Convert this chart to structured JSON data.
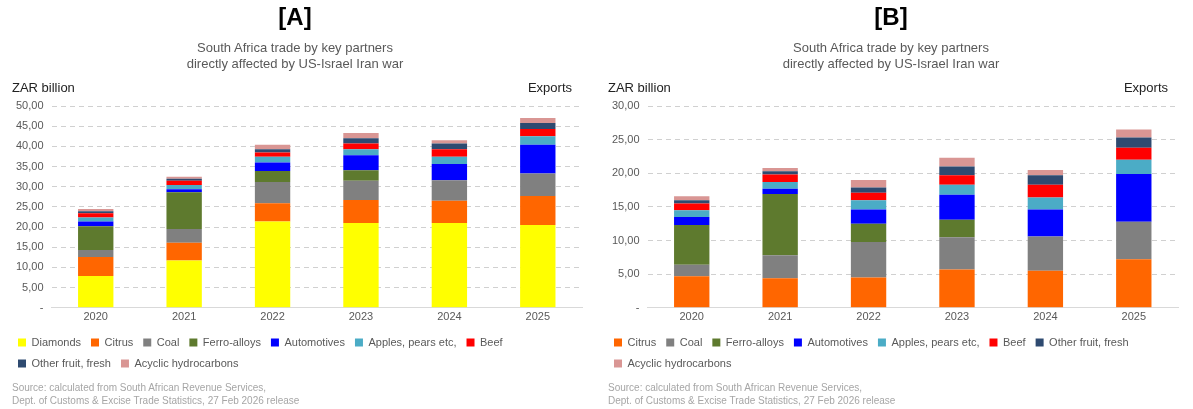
{
  "chart_data": [
    {
      "type": "bar",
      "stacked": true,
      "title": "[A]",
      "subtitle": "South Africa trade by key partners\ndirectly affected by US-Israel Iran war",
      "ylabel": "ZAR billion",
      "categories": [
        "2020",
        "2021",
        "2022",
        "2023",
        "2024",
        "2025"
      ],
      "series": [
        {
          "name": "Diamonds",
          "color": "#ffff00",
          "values": [
            7.9,
            11.7,
            21.4,
            21.0,
            21.0,
            20.5
          ]
        },
        {
          "name": "Citrus",
          "color": "#ff6600",
          "values": [
            4.7,
            4.4,
            4.5,
            5.7,
            5.5,
            7.2
          ]
        },
        {
          "name": "Coal",
          "color": "#808080",
          "values": [
            1.7,
            3.4,
            5.3,
            4.8,
            5.1,
            5.6
          ]
        },
        {
          "name": "Ferro-alloys",
          "color": "#5e7a2e",
          "values": [
            5.9,
            9.1,
            2.7,
            2.6,
            0,
            0
          ]
        },
        {
          "name": "Automotives",
          "color": "#0000ff",
          "values": [
            1.2,
            0.8,
            2.1,
            3.7,
            4.0,
            7.1
          ]
        },
        {
          "name": "Apples, pears etc,",
          "color": "#4bacc6",
          "values": [
            1.0,
            1.0,
            1.4,
            1.5,
            1.8,
            2.1
          ]
        },
        {
          "name": "Beef",
          "color": "#ff0000",
          "values": [
            1.0,
            1.1,
            1.1,
            1.4,
            1.9,
            1.8
          ]
        },
        {
          "name": "Other fruit, fresh",
          "color": "#2e4a70",
          "values": [
            0.5,
            0.5,
            0.8,
            1.3,
            1.4,
            1.5
          ]
        },
        {
          "name": "Acyclic hydrocarbons",
          "color": "#d99694",
          "values": [
            0.6,
            0.5,
            1.1,
            1.3,
            0.8,
            1.2
          ]
        }
      ],
      "ylim": [
        0,
        50
      ],
      "yticks": [
        {
          "value": 0,
          "label": "-"
        },
        {
          "value": 5,
          "label": "5,00"
        },
        {
          "value": 10,
          "label": "10,00"
        },
        {
          "value": 15,
          "label": "15,00"
        },
        {
          "value": 20,
          "label": "20,00"
        },
        {
          "value": 25,
          "label": "25,00"
        },
        {
          "value": 30,
          "label": "30,00"
        },
        {
          "value": 35,
          "label": "35,00"
        },
        {
          "value": 40,
          "label": "40,00"
        },
        {
          "value": 45,
          "label": "45,00"
        },
        {
          "value": 50,
          "label": "50,00"
        }
      ],
      "grid": "y",
      "legend": "bottom",
      "annotations": [
        "Exports",
        "Source: calculated from South African Revenue Services,\nDept. of Customs & Excise Trade Statistics, 27 Feb 2026 release"
      ]
    },
    {
      "type": "bar",
      "stacked": true,
      "title": "[B]",
      "subtitle": "South Africa trade by key partners\ndirectly affected by US-Israel Iran war",
      "ylabel": "ZAR billion",
      "categories": [
        "2020",
        "2021",
        "2022",
        "2023",
        "2024",
        "2025"
      ],
      "series": [
        {
          "name": "Citrus",
          "color": "#ff6600",
          "values": [
            4.7,
            4.4,
            4.5,
            5.7,
            5.5,
            7.2
          ]
        },
        {
          "name": "Coal",
          "color": "#808080",
          "values": [
            1.7,
            3.4,
            5.3,
            4.8,
            5.1,
            5.6
          ]
        },
        {
          "name": "Ferro-alloys",
          "color": "#5e7a2e",
          "values": [
            5.9,
            9.1,
            2.7,
            2.6,
            0,
            0
          ]
        },
        {
          "name": "Automotives",
          "color": "#0000ff",
          "values": [
            1.2,
            0.8,
            2.1,
            3.7,
            4.0,
            7.1
          ]
        },
        {
          "name": "Apples, pears etc,",
          "color": "#4bacc6",
          "values": [
            1.0,
            1.0,
            1.4,
            1.5,
            1.8,
            2.1
          ]
        },
        {
          "name": "Beef",
          "color": "#ff0000",
          "values": [
            1.0,
            1.1,
            1.1,
            1.4,
            1.9,
            1.8
          ]
        },
        {
          "name": "Other fruit, fresh",
          "color": "#2e4a70",
          "values": [
            0.5,
            0.5,
            0.8,
            1.3,
            1.4,
            1.5
          ]
        },
        {
          "name": "Acyclic hydrocarbons",
          "color": "#d99694",
          "values": [
            0.6,
            0.5,
            1.1,
            1.3,
            0.8,
            1.2
          ]
        }
      ],
      "ylim": [
        0,
        30
      ],
      "yticks": [
        {
          "value": 0,
          "label": "-"
        },
        {
          "value": 5,
          "label": "5,00"
        },
        {
          "value": 10,
          "label": "10,00"
        },
        {
          "value": 15,
          "label": "15,00"
        },
        {
          "value": 20,
          "label": "20,00"
        },
        {
          "value": 25,
          "label": "25,00"
        },
        {
          "value": 30,
          "label": "30,00"
        }
      ],
      "grid": "y",
      "legend": "bottom",
      "annotations": [
        "Exports",
        "Source: calculated from South African Revenue Services,\nDept. of Customs & Excise Trade Statistics, 27 Feb 2026 release"
      ]
    }
  ]
}
